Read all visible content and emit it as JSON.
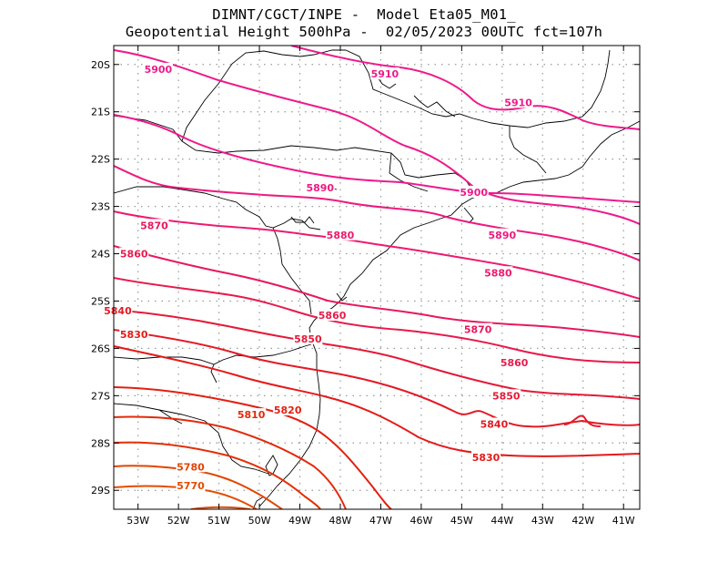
{
  "title": {
    "line1": "DIMNT/CGCT/INPE -  Model Eta05_M01_",
    "line2": "Geopotential Height 500hPa -  02/05/2023 00UTC fct=107h"
  },
  "map": {
    "lat_labels": [
      "20S",
      "21S",
      "22S",
      "23S",
      "24S",
      "25S",
      "26S",
      "27S",
      "28S",
      "29S"
    ],
    "lon_labels": [
      "53W",
      "52W",
      "51W",
      "50W",
      "49W",
      "48W",
      "47W",
      "46W",
      "45W",
      "44W",
      "43W",
      "42W",
      "41W"
    ],
    "grid": true,
    "coastline_color": "#000000",
    "contours": [
      {
        "value": "5910",
        "color": "#ee1a8c"
      },
      {
        "value": "5900",
        "color": "#ee1a8c"
      },
      {
        "value": "5890",
        "color": "#ee1a80"
      },
      {
        "value": "5880",
        "color": "#ee1a70"
      },
      {
        "value": "5870",
        "color": "#e8195e"
      },
      {
        "value": "5860",
        "color": "#e81a4c"
      },
      {
        "value": "5850",
        "color": "#e41a38"
      },
      {
        "value": "5840",
        "color": "#e41a26"
      },
      {
        "value": "5830",
        "color": "#e41a18"
      },
      {
        "value": "5820",
        "color": "#e42010"
      },
      {
        "value": "5810",
        "color": "#e42a0a"
      },
      {
        "value": "5800",
        "color": "#e43006"
      },
      {
        "value": "5790",
        "color": "#e43a04"
      },
      {
        "value": "5780",
        "color": "#e44402"
      },
      {
        "value": "5770",
        "color": "#e44c00"
      }
    ],
    "contour_labels": [
      {
        "text": "5900",
        "lon": -52.5,
        "lat": -20.1,
        "color": "#ee1a8c"
      },
      {
        "text": "5910",
        "lon": -46.9,
        "lat": -20.2,
        "color": "#ee1a8c"
      },
      {
        "text": "5910",
        "lon": -43.6,
        "lat": -20.8,
        "color": "#ee1a8c"
      },
      {
        "text": "5890",
        "lon": -48.5,
        "lat": -22.6,
        "color": "#ee1a80"
      },
      {
        "text": "5900",
        "lon": -44.7,
        "lat": -22.7,
        "color": "#ee1a8c"
      },
      {
        "text": "5870",
        "lon": -52.6,
        "lat": -23.4,
        "color": "#e8195e"
      },
      {
        "text": "5880",
        "lon": -48.0,
        "lat": -23.6,
        "color": "#ee1a70"
      },
      {
        "text": "5890",
        "lon": -44.0,
        "lat": -23.6,
        "color": "#ee1a80"
      },
      {
        "text": "5860",
        "lon": -53.1,
        "lat": -24.0,
        "color": "#e81a4c"
      },
      {
        "text": "5880",
        "lon": -44.1,
        "lat": -24.4,
        "color": "#ee1a70"
      },
      {
        "text": "5840",
        "lon": -53.5,
        "lat": -25.2,
        "color": "#e41a26"
      },
      {
        "text": "5860",
        "lon": -48.2,
        "lat": -25.3,
        "color": "#e81a4c"
      },
      {
        "text": "5870",
        "lon": -44.6,
        "lat": -25.6,
        "color": "#e8195e"
      },
      {
        "text": "5830",
        "lon": -53.1,
        "lat": -25.7,
        "color": "#e41a18"
      },
      {
        "text": "5850",
        "lon": -48.8,
        "lat": -25.8,
        "color": "#e41a38"
      },
      {
        "text": "5860",
        "lon": -43.7,
        "lat": -26.3,
        "color": "#e81a4c"
      },
      {
        "text": "5850",
        "lon": -43.9,
        "lat": -27.0,
        "color": "#e41a38"
      },
      {
        "text": "5820",
        "lon": -49.3,
        "lat": -27.3,
        "color": "#e42010"
      },
      {
        "text": "5810",
        "lon": -50.2,
        "lat": -27.4,
        "color": "#e42a0a"
      },
      {
        "text": "5840",
        "lon": -44.2,
        "lat": -27.6,
        "color": "#e41a26"
      },
      {
        "text": "5830",
        "lon": -44.4,
        "lat": -28.3,
        "color": "#e41a18"
      },
      {
        "text": "5780",
        "lon": -51.7,
        "lat": -28.5,
        "color": "#e44402"
      },
      {
        "text": "5770",
        "lon": -51.7,
        "lat": -28.9,
        "color": "#e44c00"
      }
    ]
  }
}
